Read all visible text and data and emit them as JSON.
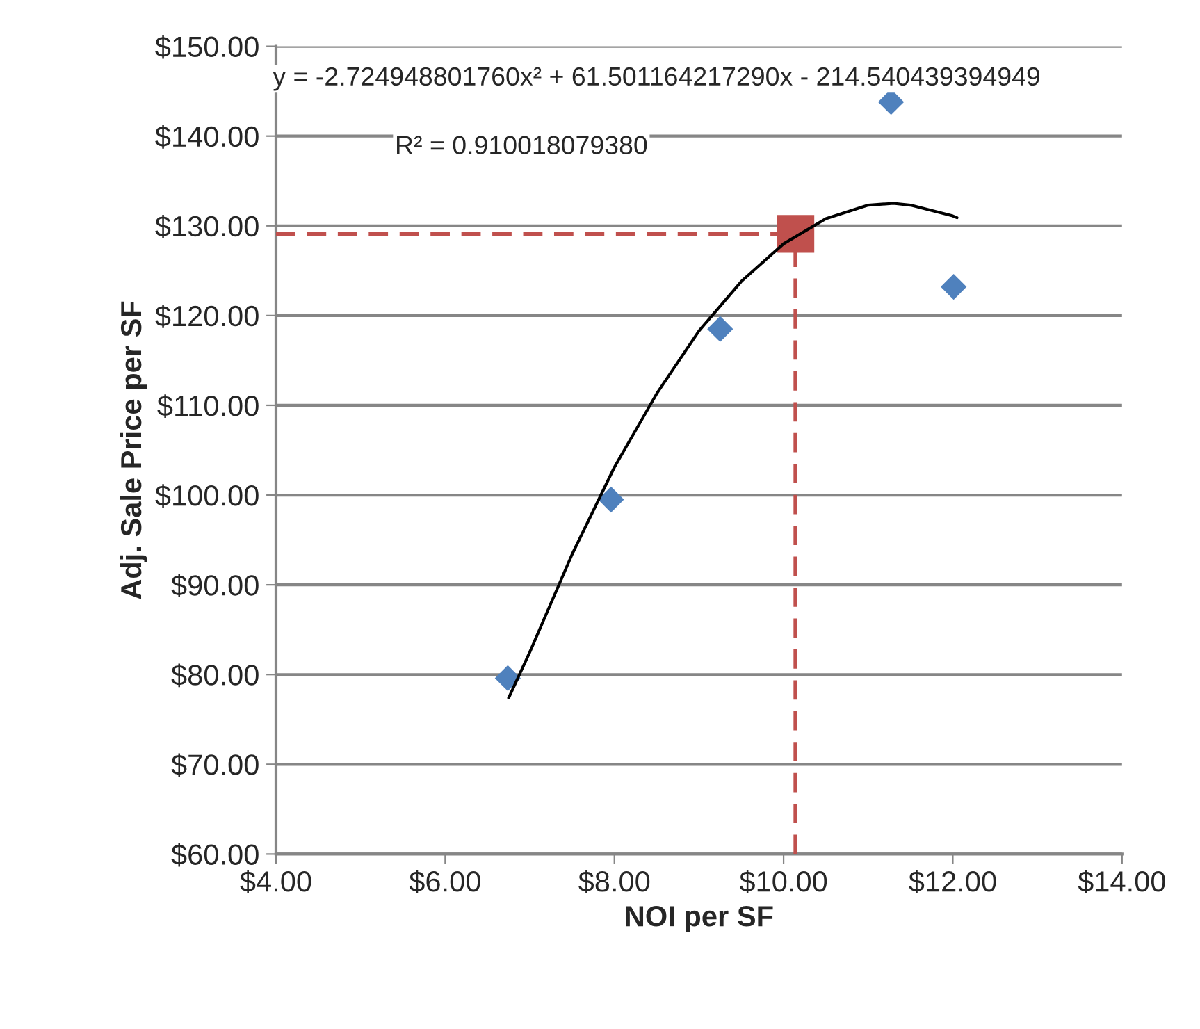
{
  "chart_data": {
    "type": "scatter",
    "xlabel": "NOI per SF",
    "ylabel": "Adj. Sale Price per SF",
    "annotations": [
      "y = -2.724948801760x² + 61.501164217290x - 214.540439394949",
      "R² = 0.910018079380"
    ],
    "series": [
      {
        "marker": "diamond",
        "color": "#4f81bd",
        "x": [
          6.74,
          7.96,
          9.25,
          11.27,
          12.01
        ],
        "values": [
          79.6,
          99.5,
          118.5,
          143.8,
          123.2
        ]
      },
      {
        "type": "line",
        "marker": "none",
        "line_style": "solid",
        "color": "#000000",
        "x": [
          6.75,
          7.0,
          7.5,
          8.0,
          8.5,
          9.0,
          9.5,
          10.0,
          10.5,
          11.0,
          11.3,
          11.5,
          12.0,
          12.05
        ],
        "values": [
          77.4,
          82.5,
          93.4,
          103.1,
          111.3,
          118.3,
          123.8,
          128.0,
          130.8,
          132.3,
          132.5,
          132.3,
          131.1,
          130.9
        ]
      },
      {
        "type": "line",
        "marker": "none",
        "line_style": "dashed",
        "color": "#c0504d",
        "x": [
          4.0,
          10.14
        ],
        "values": [
          129.1,
          129.1
        ]
      },
      {
        "type": "line",
        "marker": "none",
        "line_style": "dashed",
        "color": "#c0504d",
        "x": [
          10.14,
          10.14
        ],
        "values": [
          60.0,
          129.1
        ]
      },
      {
        "marker": "square",
        "color": "#c0504d",
        "x": [
          10.14
        ],
        "values": [
          129.1
        ]
      }
    ],
    "xlim": [
      4,
      14
    ],
    "xticks": [
      {
        "value": 4,
        "label": "$4.00"
      },
      {
        "value": 6,
        "label": "$6.00"
      },
      {
        "value": 8,
        "label": "$8.00"
      },
      {
        "value": 10,
        "label": "$10.00"
      },
      {
        "value": 12,
        "label": "$12.00"
      },
      {
        "value": 14,
        "label": "$14.00"
      }
    ],
    "ylim": [
      60,
      150
    ],
    "yticks": [
      {
        "value": 60,
        "label": "$60.00"
      },
      {
        "value": 70,
        "label": "$70.00"
      },
      {
        "value": 80,
        "label": "$80.00"
      },
      {
        "value": 90,
        "label": "$90.00"
      },
      {
        "value": 100,
        "label": "$100.00"
      },
      {
        "value": 110,
        "label": "$110.00"
      },
      {
        "value": 120,
        "label": "$120.00"
      },
      {
        "value": 130,
        "label": "$130.00"
      },
      {
        "value": 140,
        "label": "$140.00"
      },
      {
        "value": 150,
        "label": "$150.00"
      }
    ],
    "grid": "y",
    "legend": false
  }
}
